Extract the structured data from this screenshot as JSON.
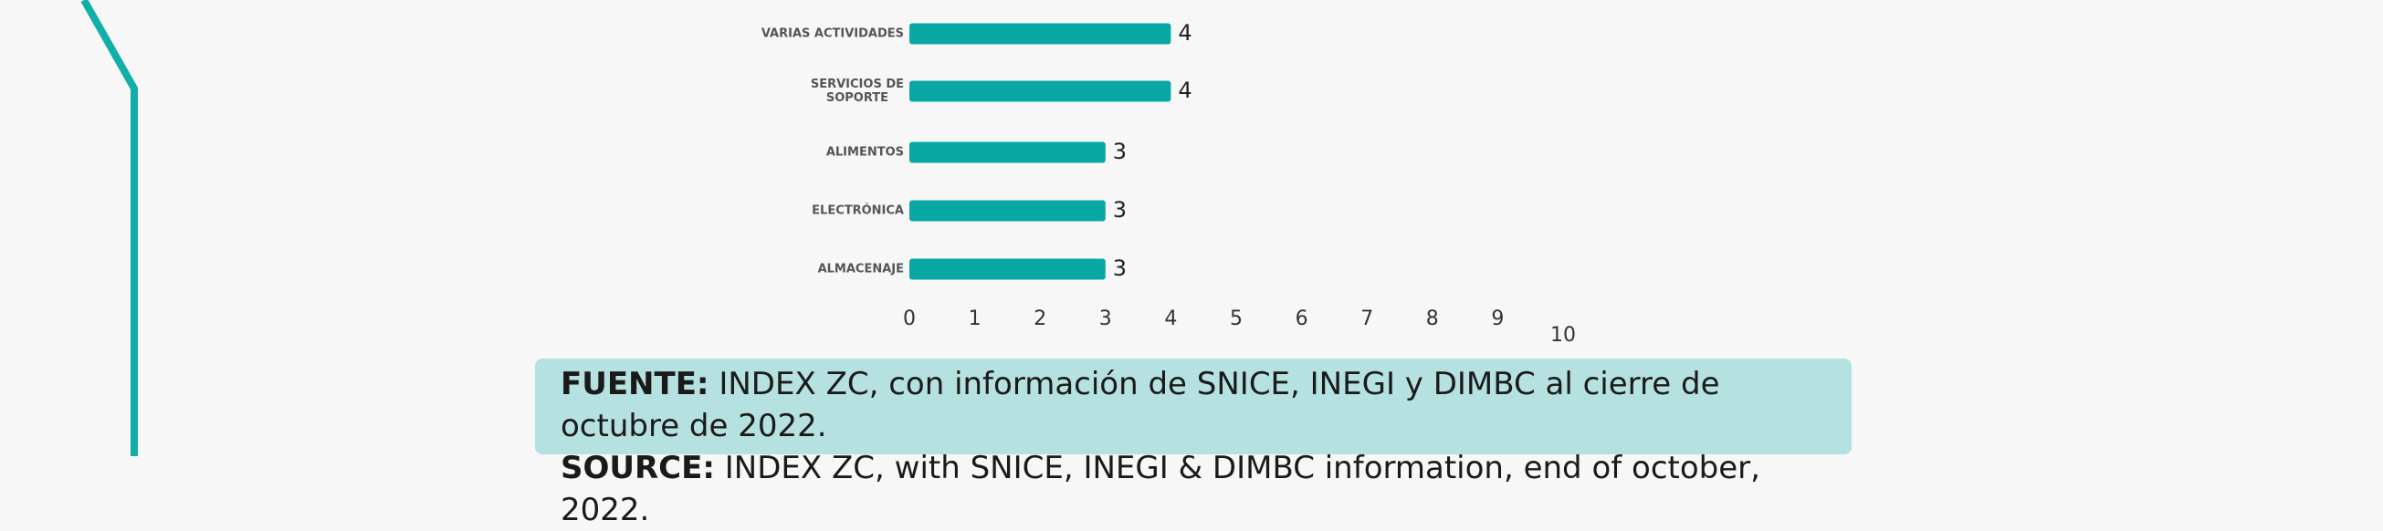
{
  "chart_data": {
    "type": "barh",
    "categories": [
      "VARIAS ACTIVIDADES",
      "SERVICIOS DE\nSOPORTE",
      "ALIMENTOS",
      "ELECTRÓNICA",
      "ALMACENAJE"
    ],
    "values": [
      4,
      4,
      3,
      3,
      3
    ],
    "color": "#0aa8a5",
    "xlim": [
      0,
      10
    ],
    "xticks": [
      0,
      1,
      2,
      3,
      4,
      5,
      6,
      7,
      8,
      9,
      10
    ]
  },
  "source_note": {
    "es_label": "FUENTE:",
    "es_text": "INDEX ZC, con información de SNICE, INEGI y DIMBC al cierre de octubre de 2022.",
    "en_label": "SOURCE:",
    "en_text": "INDEX ZC, with SNICE, INEGI & DIMBC information, end of october, 2022."
  }
}
